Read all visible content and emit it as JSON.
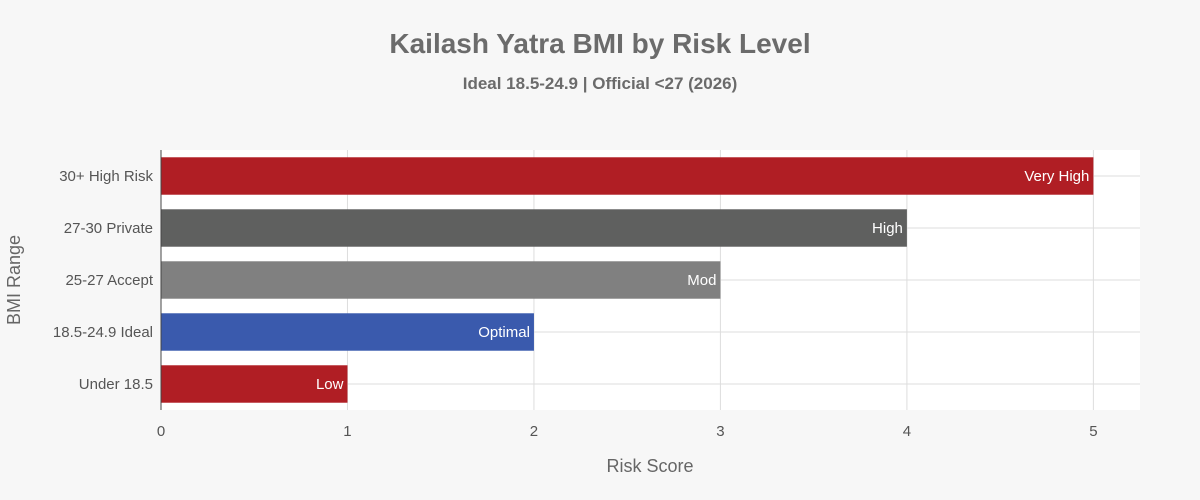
{
  "chart_data": {
    "type": "bar",
    "orientation": "horizontal",
    "title": "Kailash Yatra BMI by Risk Level",
    "subtitle": "Ideal 18.5-24.9 | Official <27 (2026)",
    "xlabel": "Risk Score",
    "ylabel": "BMI Range",
    "xlim": [
      0,
      5.25
    ],
    "xticks": [
      0,
      1,
      2,
      3,
      4,
      5
    ],
    "grid": true,
    "categories": [
      "Under 18.5",
      "18.5-24.9 Ideal",
      "25-27 Accept",
      "27-30 Private",
      "30+ High Risk"
    ],
    "values": [
      1,
      2,
      3,
      4,
      5
    ],
    "bar_labels": [
      "Low",
      "Optimal",
      "Mod",
      "High",
      "Very High"
    ],
    "colors": [
      "#b01e24",
      "#3a5aad",
      "#808080",
      "#5f605f",
      "#b01e24"
    ]
  }
}
